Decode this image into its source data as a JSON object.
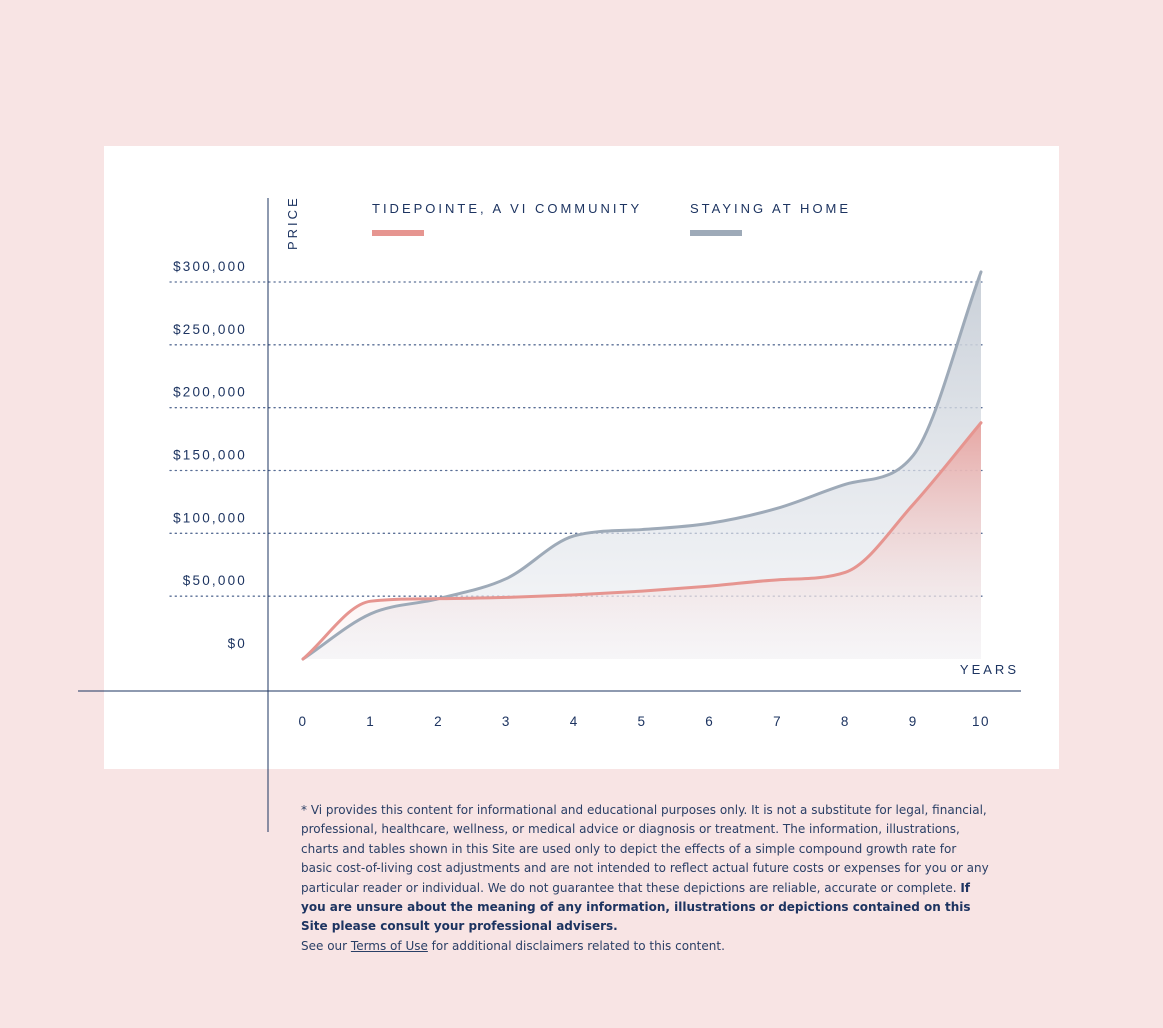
{
  "chart_data": {
    "type": "area",
    "title": "",
    "xlabel": "YEARS",
    "ylabel": "PRICE",
    "x": [
      0,
      1,
      2,
      3,
      4,
      5,
      6,
      7,
      8,
      9,
      10
    ],
    "x_tick_labels": [
      "0",
      "1",
      "2",
      "3",
      "4",
      "5",
      "6",
      "7",
      "8",
      "9",
      "10"
    ],
    "y_ticks": [
      0,
      50000,
      100000,
      150000,
      200000,
      250000,
      300000
    ],
    "y_tick_labels": [
      "$0",
      "$50,000",
      "$100,000",
      "$150,000",
      "$200,000",
      "$250,000",
      "$300,000"
    ],
    "ylim": [
      0,
      300000
    ],
    "xlim": [
      0,
      10
    ],
    "grid": "horizontal-dotted",
    "legend_position": "top",
    "series": [
      {
        "name": "TIDEPOINTE, A VI COMMUNITY",
        "color": "#e69590",
        "values": [
          0,
          46000,
          48000,
          49000,
          51000,
          54000,
          58000,
          63000,
          69000,
          123000,
          188000
        ]
      },
      {
        "name": "STAYING AT HOME",
        "color": "#9eaab8",
        "values": [
          0,
          36000,
          48000,
          64000,
          98000,
          103000,
          108000,
          120000,
          139000,
          162000,
          308000
        ]
      }
    ]
  },
  "disclaimer": {
    "text_main": "* Vi provides this content for informational and educational purposes only. It is not a substitute for legal, financial, professional, healthcare, wellness, or medical advice or diagnosis or treatment. The information, illustrations, charts and tables shown in this Site are used only to depict the effects of a simple compound growth rate for basic cost-of-living cost adjustments and are not intended to reflect actual future costs or expenses for you or any particular reader or individual. We do not guarantee that these depictions are reliable, accurate or complete. ",
    "text_bold": "If you are unsure about the meaning of any information, illustrations or depictions contained on this Site please consult your professional advisers.",
    "see_prefix": "See our ",
    "terms_link": "Terms of Use",
    "see_suffix": " for additional disclaimers related to this content."
  },
  "colors": {
    "background": "#f8e4e4",
    "card": "#ffffff",
    "axis": "#1d3461",
    "grid": "#5a6f96"
  }
}
